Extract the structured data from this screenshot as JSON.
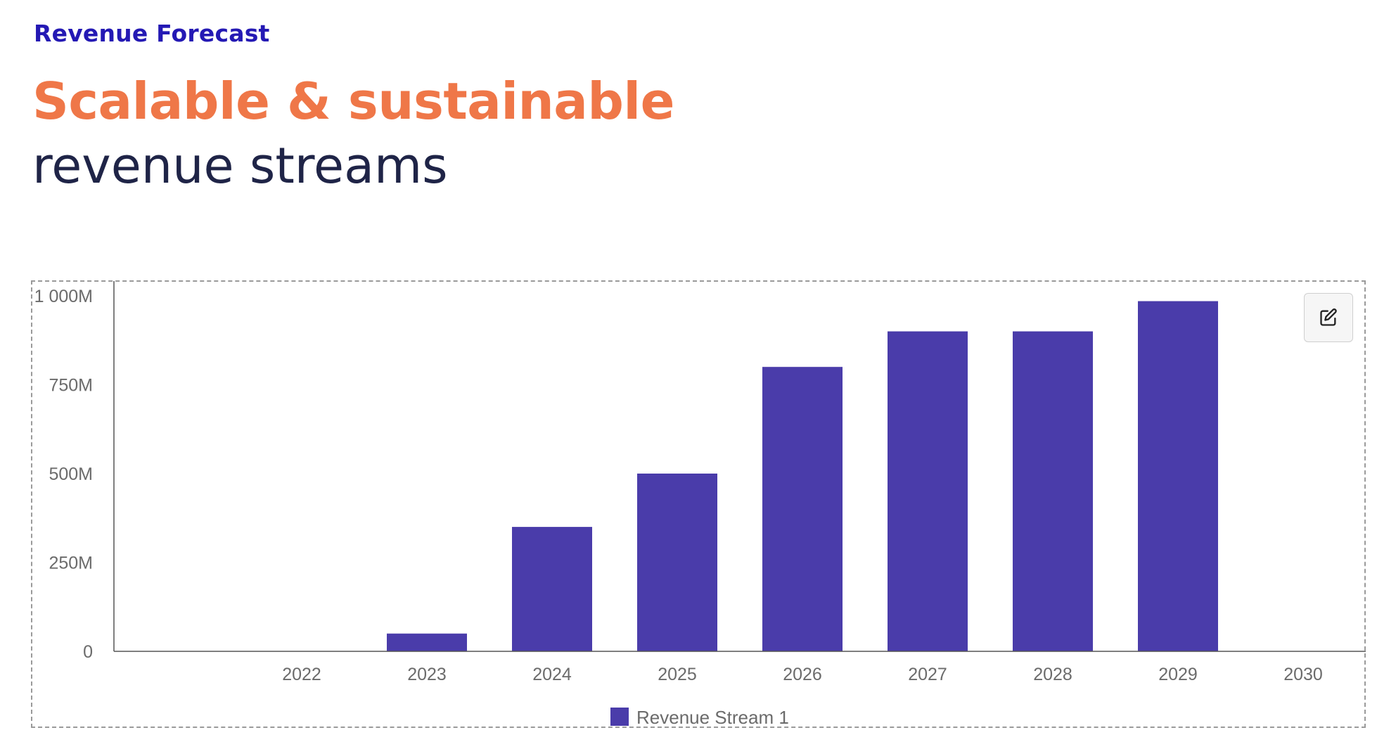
{
  "header": {
    "eyebrow": "Revenue Forecast",
    "headline_accent": "Scalable & sustainable",
    "headline_main": "revenue streams"
  },
  "toolbar": {
    "edit_icon": "edit-icon"
  },
  "colors": {
    "eyebrow": "#2419b4",
    "accent": "#ef7748",
    "headline": "#1f2447",
    "bar": "#4a3caa"
  },
  "chart_data": {
    "type": "bar",
    "categories": [
      "2022",
      "2023",
      "2024",
      "2025",
      "2026",
      "2027",
      "2028",
      "2029",
      "2030"
    ],
    "series": [
      {
        "name": "Revenue Stream 1",
        "values": [
          0,
          50,
          350,
          500,
          800,
          900,
          900,
          985,
          0
        ]
      }
    ],
    "y_unit": "M",
    "ylim": [
      0,
      1000
    ],
    "yticks": [
      {
        "value": 0,
        "label": "0"
      },
      {
        "value": 250,
        "label": "250M"
      },
      {
        "value": 500,
        "label": "500M"
      },
      {
        "value": 750,
        "label": "750M"
      },
      {
        "value": 1000,
        "label": "1 000M"
      }
    ],
    "grid": false,
    "legend": "bottom-center"
  }
}
